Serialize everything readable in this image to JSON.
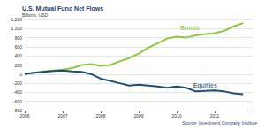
{
  "chart_data": {
    "type": "line",
    "title": "U.S. Mutual Fund Net Flows",
    "subtitle": "Billions, USD",
    "source": "Source: Investment Company Institute",
    "x": [
      2006,
      2006.25,
      2006.5,
      2006.75,
      2007,
      2007.25,
      2007.5,
      2007.75,
      2008,
      2008.25,
      2008.5,
      2008.75,
      2009,
      2009.25,
      2009.5,
      2009.75,
      2010,
      2010.25,
      2010.5,
      2010.75,
      2011,
      2011.25,
      2011.5,
      2011.75
    ],
    "series": [
      {
        "name": "Bonds",
        "color": "#8cc63f",
        "values": [
          0,
          30,
          60,
          80,
          100,
          130,
          200,
          220,
          180,
          200,
          280,
          350,
          450,
          580,
          680,
          780,
          820,
          800,
          850,
          880,
          900,
          950,
          1050,
          1120
        ]
      },
      {
        "name": "Equities",
        "color": "#1f4e79",
        "values": [
          0,
          30,
          50,
          70,
          80,
          60,
          50,
          0,
          -100,
          -150,
          -200,
          -250,
          -230,
          -250,
          -270,
          -300,
          -270,
          -300,
          -380,
          -370,
          -360,
          -380,
          -420,
          -440
        ]
      }
    ],
    "annotations": [
      {
        "text": "Bonds",
        "x": 2010.35,
        "y": 1010,
        "color": "#8cc63f"
      },
      {
        "text": "Equities",
        "x": 2010.75,
        "y": -240,
        "color": "#1f4e79"
      }
    ],
    "xlim": [
      2006,
      2012
    ],
    "xticks": [
      2006,
      2007,
      2008,
      2009,
      2010,
      2011
    ],
    "ylim": [
      -800,
      1200
    ],
    "yticks": [
      -800,
      -600,
      -400,
      -200,
      0,
      200,
      400,
      600,
      800,
      {
        "value": 1000,
        "label": "1,000"
      },
      {
        "value": 1200,
        "label": "1,200"
      }
    ],
    "grid": true
  }
}
